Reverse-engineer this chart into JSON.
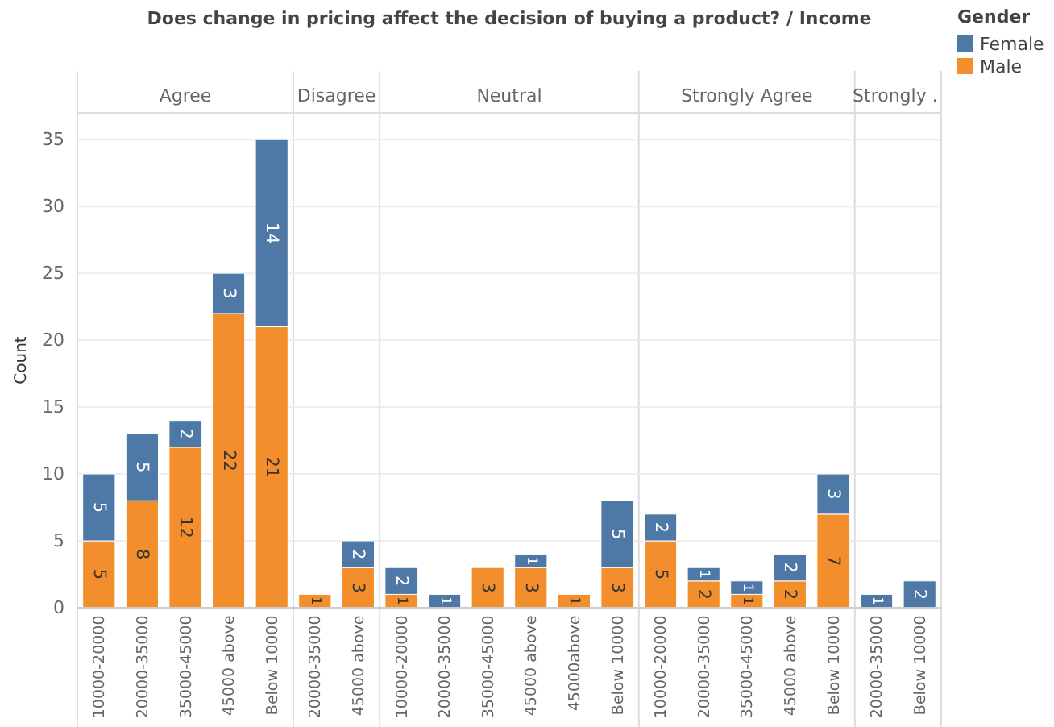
{
  "chart_data": [
    {
      "type": "bar",
      "title": "Agree",
      "annotations": [
        "Does change in pricing affect the decision of buying a product?  /  Income"
      ],
      "ylabel": "Count",
      "legend_title": "Gender",
      "legend": "right",
      "stacked": true,
      "data_labels": true,
      "grid": "y",
      "ylim": [
        0,
        37
      ],
      "yticks": [
        0,
        5,
        10,
        15,
        20,
        25,
        30,
        35
      ],
      "categories": [
        "10000-20000",
        "20000-35000",
        "35000-45000",
        "45000 above",
        "Below 10000"
      ],
      "series": [
        {
          "name": "Male",
          "color": "#f28e2b",
          "values": [
            5,
            8,
            12,
            22,
            21
          ]
        },
        {
          "name": "Female",
          "color": "#4e79a7",
          "values": [
            5,
            5,
            2,
            3,
            14
          ]
        }
      ]
    },
    {
      "type": "bar",
      "title": "Disagree",
      "stacked": true,
      "data_labels": true,
      "grid": "y",
      "tick_labels": "x",
      "ylim": [
        0,
        37
      ],
      "yticks": [
        0,
        5,
        10,
        15,
        20,
        25,
        30,
        35
      ],
      "categories": [
        "20000-35000",
        "45000 above"
      ],
      "series": [
        {
          "color": "#f28e2b",
          "values": [
            1,
            3
          ]
        },
        {
          "color": "#4e79a7",
          "values": [
            null,
            2
          ]
        }
      ]
    },
    {
      "type": "bar",
      "title": "Neutral",
      "stacked": true,
      "data_labels": true,
      "grid": "y",
      "tick_labels": "x",
      "ylim": [
        0,
        37
      ],
      "yticks": [
        0,
        5,
        10,
        15,
        20,
        25,
        30,
        35
      ],
      "categories": [
        "10000-20000",
        "20000-35000",
        "35000-45000",
        "45000 above",
        "45000above",
        "Below 10000"
      ],
      "series": [
        {
          "color": "#f28e2b",
          "values": [
            1,
            null,
            3,
            3,
            1,
            3
          ]
        },
        {
          "color": "#4e79a7",
          "values": [
            2,
            1,
            null,
            1,
            null,
            5
          ]
        }
      ]
    },
    {
      "type": "bar",
      "title": "Strongly Agree",
      "stacked": true,
      "data_labels": true,
      "grid": "y",
      "tick_labels": "x",
      "ylim": [
        0,
        37
      ],
      "yticks": [
        0,
        5,
        10,
        15,
        20,
        25,
        30,
        35
      ],
      "categories": [
        "10000-20000",
        "20000-35000",
        "35000-45000",
        "45000 above",
        "Below 10000"
      ],
      "series": [
        {
          "color": "#f28e2b",
          "values": [
            5,
            2,
            1,
            2,
            7
          ]
        },
        {
          "color": "#4e79a7",
          "values": [
            2,
            1,
            1,
            2,
            3
          ]
        }
      ]
    },
    {
      "type": "bar",
      "title": "Strongly ..",
      "stacked": true,
      "data_labels": true,
      "grid": "y",
      "tick_labels": "x",
      "ylim": [
        0,
        37
      ],
      "yticks": [
        0,
        5,
        10,
        15,
        20,
        25,
        30,
        35
      ],
      "categories": [
        "20000-35000",
        "Below 10000"
      ],
      "series": [
        {
          "color": "#4e79a7",
          "values": [
            1,
            2
          ]
        }
      ]
    }
  ]
}
